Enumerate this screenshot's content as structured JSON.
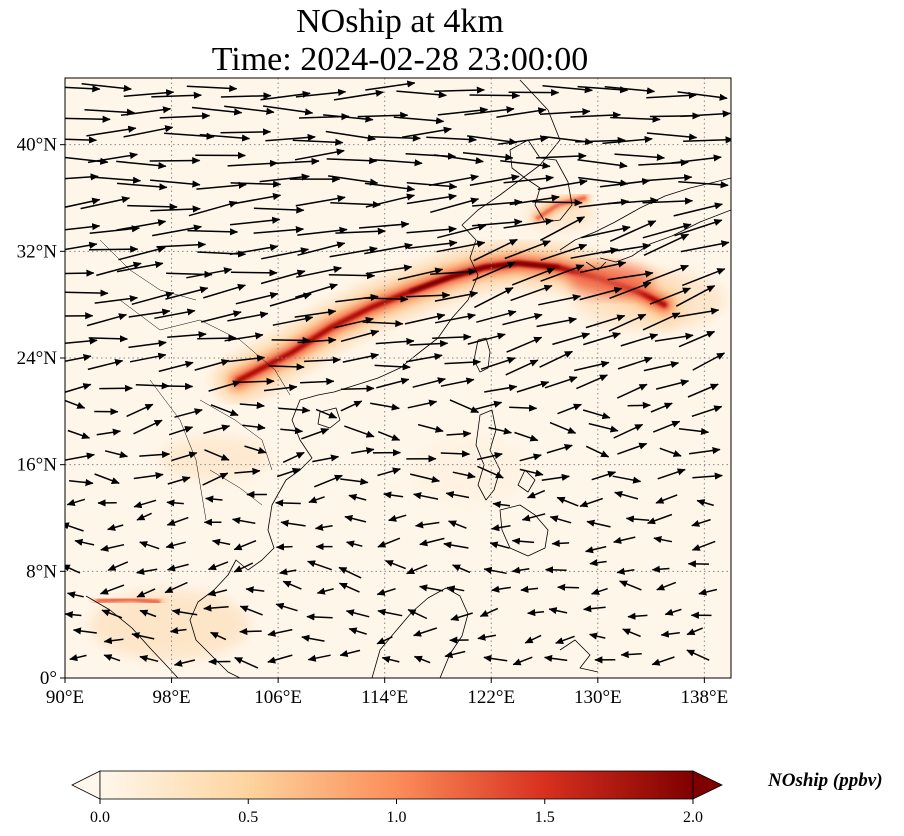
{
  "title": {
    "line1": "NOship at 4km",
    "line2": "Time: 2024-02-28 23:00:00"
  },
  "map": {
    "variable": "NOship",
    "lon_range": [
      90,
      140
    ],
    "lat_range": [
      0,
      45
    ],
    "gridlines": "dotted grey",
    "colormap": "OrRd",
    "colors": {
      "coastline": "#000000",
      "background": "#fff6ea",
      "gridline": "#888888",
      "max_plume": "#7f0000"
    }
  },
  "chart_data": {
    "type": "heatmap",
    "x_ticks": [
      "90°E",
      "98°E",
      "106°E",
      "114°E",
      "122°E",
      "130°E",
      "138°E"
    ],
    "x_tick_values": [
      90,
      98,
      106,
      114,
      122,
      130,
      138
    ],
    "y_ticks": [
      "0°",
      "8°N",
      "16°N",
      "24°N",
      "32°N",
      "40°N"
    ],
    "y_tick_values": [
      0,
      8,
      16,
      24,
      32,
      40
    ],
    "plume_path_lonlat": [
      [
        103,
        22.3
      ],
      [
        107,
        24.4
      ],
      [
        110,
        26.3
      ],
      [
        113,
        27.8
      ],
      [
        116,
        29.0
      ],
      [
        119,
        30.1
      ],
      [
        121.5,
        30.8
      ],
      [
        124,
        31.1
      ],
      [
        127,
        30.8
      ],
      [
        130,
        30.0
      ],
      [
        133,
        29.0
      ],
      [
        135,
        28.0
      ]
    ],
    "secondary_plumes_lonlat": [
      [
        [
          92.5,
          5.8
        ],
        [
          95,
          5.9
        ],
        [
          97,
          5.7
        ]
      ],
      [
        [
          125.5,
          34.5
        ],
        [
          127,
          35.5
        ],
        [
          129,
          36.0
        ]
      ]
    ],
    "wind_field": "westerly arrows north of 20°N, weak mixed flow south"
  },
  "colorbar": {
    "ticks": [
      "0.0",
      "0.5",
      "1.0",
      "1.5",
      "2.0"
    ],
    "tick_values": [
      0.0,
      0.5,
      1.0,
      1.5,
      2.0
    ],
    "range": [
      0.0,
      2.0
    ],
    "extend": "both",
    "label": "NOship (ppbv)",
    "stops": [
      "#fff7ec",
      "#fdd49e",
      "#fc8d59",
      "#d7301f",
      "#7f0000"
    ]
  }
}
